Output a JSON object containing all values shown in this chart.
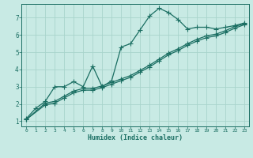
{
  "xlabel": "Humidex (Indice chaleur)",
  "bg_color": "#c8eae4",
  "grid_color": "#a8d4cc",
  "line_color": "#1a6e62",
  "marker": "+",
  "markersize": 4,
  "linewidth": 0.9,
  "ylim": [
    0.7,
    7.8
  ],
  "xlim": [
    -0.5,
    23.5
  ],
  "xticks": [
    0,
    1,
    2,
    3,
    4,
    5,
    6,
    7,
    8,
    9,
    10,
    11,
    12,
    13,
    14,
    15,
    16,
    17,
    18,
    19,
    20,
    21,
    22,
    23
  ],
  "yticks": [
    1,
    2,
    3,
    4,
    5,
    6,
    7
  ],
  "line1_x": [
    0,
    1,
    2,
    3,
    4,
    5,
    6,
    7,
    8,
    9,
    10,
    11,
    12,
    13,
    14,
    15,
    16,
    17,
    18,
    19,
    20,
    21,
    22,
    23
  ],
  "line1_y": [
    1.15,
    1.75,
    2.15,
    3.0,
    3.0,
    3.3,
    3.0,
    4.2,
    3.0,
    3.35,
    5.3,
    5.5,
    6.3,
    7.1,
    7.55,
    7.3,
    6.9,
    6.35,
    6.45,
    6.45,
    6.35,
    6.45,
    6.55,
    6.7
  ],
  "line2_x": [
    0,
    2,
    3,
    4,
    5,
    6,
    7,
    8,
    9,
    10,
    11,
    12,
    13,
    14,
    15,
    16,
    17,
    18,
    19,
    20,
    21,
    22,
    23
  ],
  "line2_y": [
    1.1,
    2.05,
    2.15,
    2.45,
    2.75,
    2.9,
    2.9,
    3.05,
    3.25,
    3.45,
    3.65,
    3.95,
    4.25,
    4.6,
    4.95,
    5.2,
    5.5,
    5.75,
    5.95,
    6.05,
    6.25,
    6.5,
    6.65
  ],
  "line3_x": [
    0,
    2,
    3,
    4,
    5,
    6,
    7,
    8,
    9,
    10,
    11,
    12,
    13,
    14,
    15,
    16,
    17,
    18,
    19,
    20,
    21,
    22,
    23
  ],
  "line3_y": [
    1.1,
    1.95,
    2.05,
    2.35,
    2.65,
    2.8,
    2.8,
    2.95,
    3.15,
    3.35,
    3.55,
    3.85,
    4.15,
    4.5,
    4.85,
    5.1,
    5.4,
    5.65,
    5.85,
    5.95,
    6.15,
    6.4,
    6.6
  ]
}
